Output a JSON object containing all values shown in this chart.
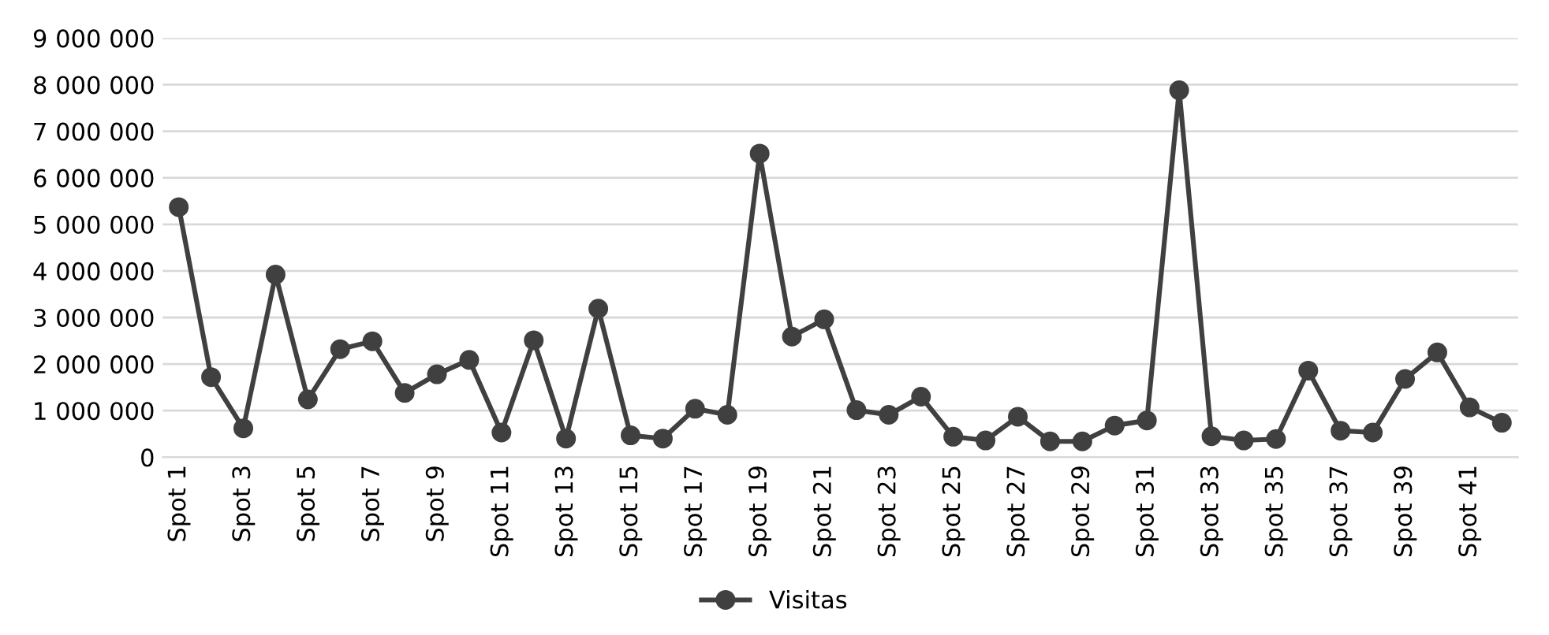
{
  "chart_data": {
    "type": "line",
    "categories": [
      "Spot 1",
      null,
      "Spot 3",
      null,
      "Spot 5",
      null,
      "Spot 7",
      null,
      "Spot 9",
      null,
      "Spot 11",
      null,
      "Spot 13",
      null,
      "Spot 15",
      null,
      "Spot 17",
      null,
      "Spot 19",
      null,
      "Spot 21",
      null,
      "Spot 23",
      null,
      "Spot 25",
      null,
      "Spot 27",
      null,
      "Spot 29",
      null,
      "Spot 31",
      null,
      "Spot 33",
      null,
      "Spot 35",
      null,
      "Spot 37",
      null,
      "Spot 39",
      null,
      "Spot 41",
      null
    ],
    "series": [
      {
        "name": "Visitas",
        "color": "#404040",
        "values": [
          5370000,
          1720000,
          620000,
          3920000,
          1240000,
          2320000,
          2490000,
          1380000,
          1780000,
          2090000,
          530000,
          2510000,
          400000,
          3190000,
          470000,
          400000,
          1040000,
          910000,
          6520000,
          2590000,
          2960000,
          1010000,
          910000,
          1300000,
          440000,
          360000,
          870000,
          340000,
          340000,
          680000,
          790000,
          7880000,
          450000,
          360000,
          390000,
          1860000,
          570000,
          530000,
          1680000,
          2250000,
          1070000,
          740000
        ]
      }
    ],
    "ylim": [
      0,
      9000000
    ],
    "yticks": [
      {
        "value": 0,
        "label": "0"
      },
      {
        "value": 1000000,
        "label": "1 000 000"
      },
      {
        "value": 2000000,
        "label": "2 000 000"
      },
      {
        "value": 3000000,
        "label": "3 000 000"
      },
      {
        "value": 4000000,
        "label": "4 000 000"
      },
      {
        "value": 5000000,
        "label": "5 000 000"
      },
      {
        "value": 6000000,
        "label": "6 000 000"
      },
      {
        "value": 7000000,
        "label": "7 000 000"
      },
      {
        "value": 8000000,
        "label": "8 000 000"
      },
      {
        "value": 9000000,
        "label": "9 000 000"
      }
    ],
    "grid": "y",
    "legend": "bottom",
    "marker": "circle",
    "line_style": "solid"
  }
}
